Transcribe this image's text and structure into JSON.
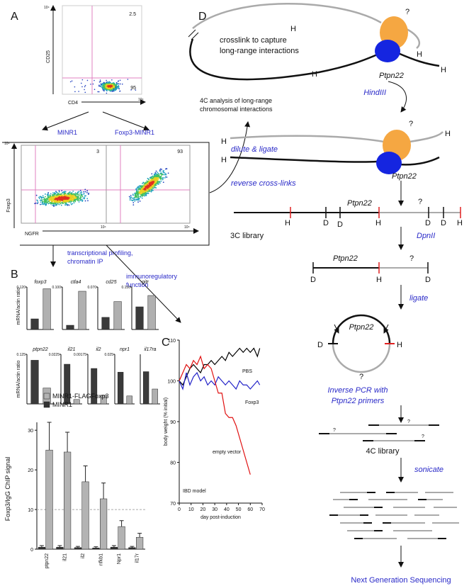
{
  "panel_labels": [
    "A",
    "B",
    "C",
    "D"
  ],
  "flow": {
    "axis_max": "10⁴",
    "top": {
      "y_label": "CD25",
      "x_label": "CD4",
      "upper": "2.5",
      "lower": "95"
    },
    "branches": [
      "MINR1",
      "Foxp3-MINR1"
    ],
    "bottom": {
      "y_label": "Foxp3",
      "x_label": "NGFR",
      "left": "3",
      "right": "93"
    }
  },
  "arrows": {
    "profiling": [
      "transcriptional profiling,",
      "chromatin IP"
    ],
    "function": [
      "immunoregulatory",
      "function"
    ],
    "analysis": [
      "4C analysis of long-range",
      "chromosomal interactions"
    ]
  },
  "expression_y_label": "mRNA/actin ratio",
  "chart_data": [
    {
      "type": "bar",
      "title": "foxp3",
      "ylim": [
        0,
        0.12
      ],
      "yticks": [
        {
          "value": 0.12,
          "label": "0.120"
        }
      ],
      "values": [
        0.03,
        0.115
      ],
      "colors": [
        "#3a3a3a",
        "#b0b0b0"
      ]
    },
    {
      "type": "bar",
      "title": "ctla4",
      "ylim": [
        0,
        0.1
      ],
      "yticks": [
        {
          "value": 0.1,
          "label": "0.100"
        }
      ],
      "values": [
        0.01,
        0.09
      ],
      "colors": [
        "#3a3a3a",
        "#b0b0b0"
      ]
    },
    {
      "type": "bar",
      "title": "cd25",
      "ylim": [
        0,
        0.07
      ],
      "yticks": [
        {
          "value": 0.07,
          "label": "0.070"
        }
      ],
      "values": [
        0.02,
        0.046
      ],
      "colors": [
        "#3a3a3a",
        "#b0b0b0"
      ]
    },
    {
      "type": "bar",
      "title": "gitr",
      "ylim": [
        0,
        0.15
      ],
      "yticks": [
        {
          "value": 0.15,
          "label": "0.150"
        }
      ],
      "values": [
        0.08,
        0.12
      ],
      "colors": [
        "#3a3a3a",
        "#b0b0b0"
      ]
    },
    {
      "type": "bar",
      "title": "ptpn22",
      "ylim": [
        0,
        0.125
      ],
      "yticks": [
        0.125
      ],
      "values": [
        0.11,
        0.04
      ],
      "colors": [
        "#3a3a3a",
        "#b0b0b0"
      ]
    },
    {
      "type": "bar",
      "title": "il21",
      "ylim": [
        0,
        0.0225
      ],
      "yticks": [
        0.0225
      ],
      "values": [
        0.018,
        0.002
      ],
      "colors": [
        "#3a3a3a",
        "#b0b0b0"
      ]
    },
    {
      "type": "bar",
      "title": "il2",
      "ylim": [
        0,
        0.00175
      ],
      "yticks": [
        0.00175
      ],
      "values": [
        0.00125,
        0.0003
      ],
      "colors": [
        "#3a3a3a",
        "#b0b0b0"
      ]
    },
    {
      "type": "bar",
      "title": "npr1",
      "ylim": [
        0,
        0.025
      ],
      "yticks": [
        0.025
      ],
      "values": [
        0.016,
        0.004
      ],
      "colors": [
        "#3a3a3a",
        "#b0b0b0"
      ]
    },
    {
      "type": "bar",
      "title": "il17ra",
      "ylim": [
        0,
        1
      ],
      "values": [
        0.65,
        0.3
      ],
      "colors": [
        "#3a3a3a",
        "#b0b0b0"
      ]
    },
    {
      "type": "grouped_bar",
      "y_label": "Foxp3/IgG ChIP signal",
      "categories": [
        "ptpn22",
        "il21",
        "il2",
        "nfkb1",
        "Npr1",
        "il17r"
      ],
      "series": [
        {
          "name": "MINR1-FLAGFoxp3",
          "color": "#b3b3b3",
          "values": [
            25,
            24.5,
            17,
            12.7,
            5.7,
            3
          ],
          "errors": [
            7,
            5,
            4,
            4,
            1.5,
            1
          ]
        },
        {
          "name": "MINR1",
          "color": "#333333",
          "values": [
            0.5,
            0.5,
            0.4,
            0.3,
            0.5,
            0.4
          ],
          "errors": [
            0.4,
            0.4,
            0.3,
            0.3,
            0.4,
            0.3
          ]
        }
      ],
      "ylim": [
        0,
        32
      ],
      "yticks": [
        0,
        10,
        20,
        30
      ],
      "reference_line": 10
    },
    {
      "type": "line",
      "y_label": "body weight (% initial)",
      "x_label": "day post-induction",
      "note": "IBD model",
      "x": [
        0,
        3,
        6,
        9,
        12,
        15,
        18,
        21,
        24,
        27,
        30,
        33,
        36,
        39,
        42,
        45,
        48,
        51,
        54,
        57,
        60,
        63,
        66,
        68
      ],
      "series": [
        {
          "name": "PBS",
          "color": "#000000",
          "values": [
            100,
            99,
            101,
            103,
            104,
            103,
            102,
            104,
            104,
            105,
            104,
            105,
            106,
            105,
            107,
            106,
            107,
            108,
            107,
            108,
            107,
            108,
            106,
            108
          ]
        },
        {
          "name": "Foxp3",
          "color": "#2323c8",
          "values": [
            100,
            98,
            102,
            99,
            101,
            102,
            100,
            101,
            99,
            100,
            99,
            101,
            100,
            99,
            100,
            99,
            98,
            100,
            99,
            99,
            98,
            99,
            100,
            99
          ]
        },
        {
          "name": "empty vector",
          "color": "#e01010",
          "values": [
            100,
            102,
            104,
            103,
            105,
            104,
            106,
            103,
            104,
            103,
            100,
            97,
            97,
            92,
            91,
            91,
            89,
            86,
            83,
            80,
            77,
            null,
            null,
            null
          ]
        }
      ],
      "xlim": [
        0,
        70
      ],
      "ylim": [
        70,
        110
      ],
      "xticks": [
        0,
        10,
        20,
        30,
        40,
        50,
        60,
        70
      ],
      "yticks": [
        70,
        80,
        90,
        100,
        110
      ]
    }
  ],
  "panel_d": {
    "crosslink": [
      "crosslink to capture",
      "long-range interactions"
    ],
    "gene": "Ptpn22",
    "unknown": "?",
    "hind": "H",
    "dpn": "D",
    "steps": [
      "HindIII",
      "dilute & ligate",
      "reverse cross-links",
      "DpnII",
      "ligate",
      "Inverse PCR with",
      "Ptpn22 primers",
      "sonicate",
      "Next Generation Sequencing"
    ],
    "libraries": [
      "3C library",
      "4C library"
    ]
  }
}
